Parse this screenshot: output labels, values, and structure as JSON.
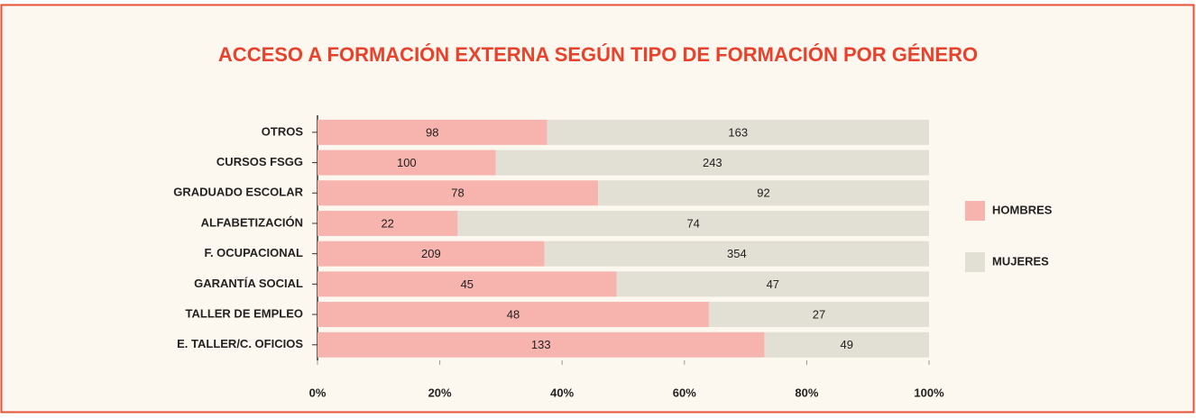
{
  "chart_data": {
    "type": "bar",
    "orientation": "horizontal",
    "stacking": "percent",
    "title": "ACCESO A FORMACIÓN EXTERNA SEGÚN TIPO DE FORMACIÓN POR GÉNERO",
    "categories": [
      "OTROS",
      "CURSOS FSGG",
      "GRADUADO ESCOLAR",
      "ALFABETIZACIÓN",
      "F. OCUPACIONAL",
      "GARANTÍA SOCIAL",
      "TALLER DE EMPLEO",
      "E. TALLER/C. OFICIOS"
    ],
    "series": [
      {
        "name": "HOMBRES",
        "color": "#f7b3ae",
        "values": [
          98,
          100,
          78,
          22,
          209,
          45,
          48,
          133
        ]
      },
      {
        "name": "MUJERES",
        "color": "#e2dfd4",
        "values": [
          163,
          243,
          92,
          74,
          354,
          47,
          27,
          49
        ]
      }
    ],
    "xlim": [
      0,
      100
    ],
    "xticks": [
      {
        "value": 0,
        "label": "0%"
      },
      {
        "value": 20,
        "label": "20%"
      },
      {
        "value": 40,
        "label": "40%"
      },
      {
        "value": 60,
        "label": "60%"
      },
      {
        "value": 80,
        "label": "80%"
      },
      {
        "value": 100,
        "label": "100%"
      }
    ],
    "legend": "right"
  }
}
